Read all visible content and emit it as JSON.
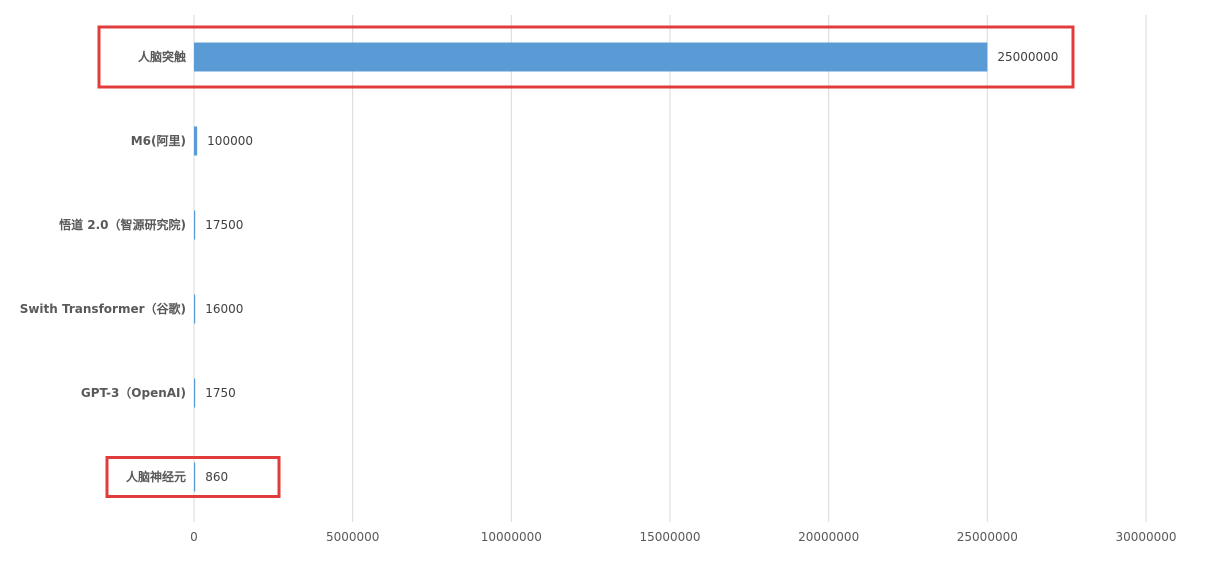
{
  "chart_data": {
    "type": "bar",
    "orientation": "horizontal",
    "categories": [
      "人脑突触",
      "M6(阿里)",
      "悟道 2.0（智源研究院)",
      "Swith Transformer（谷歌)",
      "GPT-3（OpenAI)",
      "人脑神经元"
    ],
    "values": [
      25000000,
      100000,
      17500,
      16000,
      1750,
      860
    ],
    "data_labels": [
      "25000000",
      "100000",
      "17500",
      "16000",
      "1750",
      "860"
    ],
    "highlighted": [
      "人脑突触",
      "人脑神经元"
    ],
    "xlim": [
      0,
      30000000
    ],
    "xticks": [
      "0",
      "5000000",
      "10000000",
      "15000000",
      "20000000",
      "25000000",
      "30000000"
    ],
    "grid": true,
    "legend": "none",
    "colors": {
      "bar": "#5b9bd5",
      "highlight_box": "#e03c3c",
      "grid": "#d9d9d9"
    }
  }
}
